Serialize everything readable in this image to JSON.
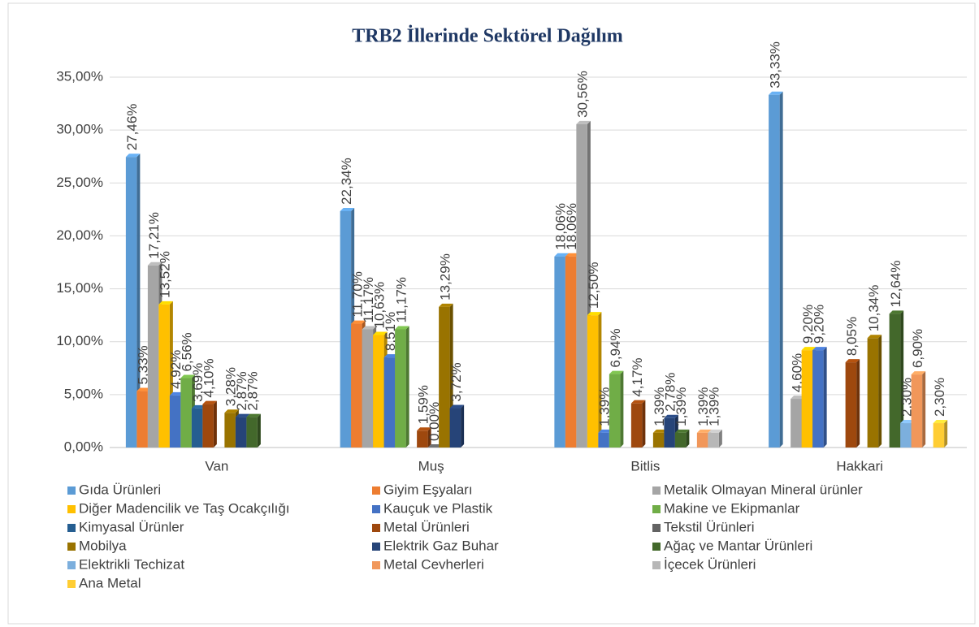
{
  "chart_data": {
    "type": "bar",
    "title": "TRB2 İllerinde Sektörel Dağılım",
    "categories": [
      "Van",
      "Muş",
      "Bitlis",
      "Hakkari"
    ],
    "ylim": [
      0,
      35
    ],
    "yticks": [
      {
        "value": 0,
        "label": "0,00%"
      },
      {
        "value": 5,
        "label": "5,00%"
      },
      {
        "value": 10,
        "label": "10,00%"
      },
      {
        "value": 15,
        "label": "15,00%"
      },
      {
        "value": 20,
        "label": "20,00%"
      },
      {
        "value": 25,
        "label": "25,00%"
      },
      {
        "value": 30,
        "label": "30,00%"
      },
      {
        "value": 35,
        "label": "35,00%"
      }
    ],
    "grid": true,
    "legend": "bottom",
    "series": [
      {
        "name": "Gıda Ürünleri",
        "color": "#5b9bd5",
        "values": [
          27.46,
          22.34,
          18.06,
          33.33
        ],
        "value_labels": [
          "27,46%",
          "22,34%",
          "18,06%",
          "33,33%"
        ]
      },
      {
        "name": "Giyim Eşyaları",
        "color": "#ed7d31",
        "values": [
          5.33,
          11.7,
          18.06,
          null
        ],
        "value_labels": [
          "5,33%",
          "11,70%",
          "18,06%",
          null
        ]
      },
      {
        "name": "Metalik Olmayan Mineral ürünler",
        "color": "#a5a5a5",
        "values": [
          17.21,
          11.17,
          30.56,
          4.6
        ],
        "value_labels": [
          "17,21%",
          "11,17%",
          "30,56%",
          "4,60%"
        ]
      },
      {
        "name": "Diğer Madencilik ve Taş Ocakçılığı",
        "color": "#ffc000",
        "values": [
          13.52,
          10.63,
          12.5,
          9.2
        ],
        "value_labels": [
          "13,52%",
          "10,63%",
          "12,50%",
          "9,20%"
        ]
      },
      {
        "name": "Kauçuk ve Plastik",
        "color": "#4472c4",
        "values": [
          4.92,
          8.51,
          1.39,
          9.2
        ],
        "value_labels": [
          "4,92%",
          "8,51%",
          "1,39%",
          "9,20%"
        ]
      },
      {
        "name": "Makine ve Ekipmanlar",
        "color": "#70ad47",
        "values": [
          6.56,
          11.17,
          6.94,
          null
        ],
        "value_labels": [
          "6,56%",
          "11,17%",
          "6,94%",
          null
        ]
      },
      {
        "name": "Kimyasal Ürünler",
        "color": "#255e91",
        "values": [
          3.69,
          null,
          null,
          null
        ],
        "value_labels": [
          "3,69%",
          null,
          null,
          null
        ]
      },
      {
        "name": "Metal Ürünleri",
        "color": "#9e480e",
        "values": [
          4.1,
          1.59,
          4.17,
          8.05
        ],
        "value_labels": [
          "4,10%",
          "1,59%",
          "4,17%",
          "8,05%"
        ]
      },
      {
        "name": "Tekstil Ürünleri",
        "color": "#636363",
        "values": [
          null,
          0.0,
          null,
          null
        ],
        "value_labels": [
          null,
          "0,00%",
          null,
          null
        ]
      },
      {
        "name": "Mobilya",
        "color": "#997300",
        "values": [
          3.28,
          13.29,
          1.39,
          10.34
        ],
        "value_labels": [
          "3,28%",
          "13,29%",
          "1,39%",
          "10,34%"
        ]
      },
      {
        "name": "Elektrik Gaz Buhar",
        "color": "#264478",
        "values": [
          2.87,
          3.72,
          2.78,
          null
        ],
        "value_labels": [
          "2,87%",
          "3,72%",
          "2,78%",
          null
        ]
      },
      {
        "name": "Ağaç ve Mantar Ürünleri",
        "color": "#43682b",
        "values": [
          2.87,
          null,
          1.39,
          12.64
        ],
        "value_labels": [
          "2,87%",
          null,
          "1,39%",
          "12,64%"
        ]
      },
      {
        "name": "Elektrikli Techizat",
        "color": "#7cafdd",
        "values": [
          null,
          null,
          null,
          2.3
        ],
        "value_labels": [
          null,
          null,
          null,
          "2,30%"
        ]
      },
      {
        "name": "Metal Cevherleri",
        "color": "#f1975a",
        "values": [
          null,
          null,
          1.39,
          6.9
        ],
        "value_labels": [
          null,
          null,
          "1,39%",
          "6,90%"
        ]
      },
      {
        "name": "İçecek Ürünleri",
        "color": "#b7b7b7",
        "values": [
          null,
          null,
          1.39,
          null
        ],
        "value_labels": [
          null,
          null,
          "1,39%",
          null
        ]
      },
      {
        "name": "Ana Metal",
        "color": "#ffcd33",
        "values": [
          null,
          null,
          null,
          2.3
        ],
        "value_labels": [
          null,
          null,
          null,
          "2,30%"
        ]
      }
    ]
  }
}
